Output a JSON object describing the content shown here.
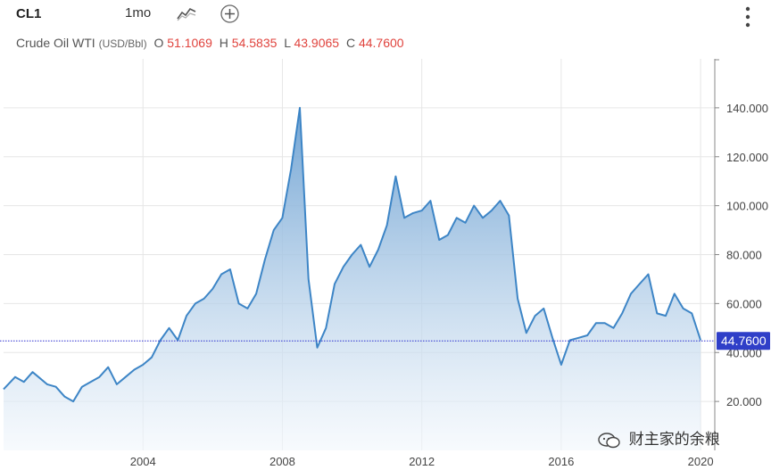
{
  "toolbar": {
    "symbol": "CL1",
    "interval": "1mo",
    "chart_type_icon": "line-chart-icon",
    "add_icon": "plus-circle-icon",
    "menu_icon": "vertical-ellipsis-icon"
  },
  "instrument": {
    "name": "Crude Oil WTI",
    "unit": "(USD/Bbl)",
    "open_label": "O",
    "open": "51.1069",
    "high_label": "H",
    "high": "54.5835",
    "low_label": "L",
    "low": "43.9065",
    "close_label": "C",
    "close": "44.7600"
  },
  "watermark": {
    "text": "财主家的余粮",
    "icon": "wechat-icon"
  },
  "colors": {
    "line": "#3d85c6",
    "fill_top": "#6a9fd1",
    "fill_bottom": "#f2f7fc",
    "last_price_line": "#2b2fd0",
    "last_price_badge": "#2f3fc8",
    "ohlc_value": "#e0433d",
    "grid": "#e6e6e6"
  },
  "chart_data": {
    "type": "area",
    "series": [
      {
        "x": [
          2000.0,
          2000.333,
          2000.583,
          2000.833,
          2001.0,
          2001.25,
          2001.5,
          2001.75,
          2002.0,
          2002.25,
          2002.5,
          2002.75,
          2003.0,
          2003.25,
          2003.5,
          2003.75,
          2004.0,
          2004.25,
          2004.5,
          2004.75,
          2005.0,
          2005.25,
          2005.5,
          2005.75,
          2006.0,
          2006.25,
          2006.5,
          2006.75,
          2007.0,
          2007.25,
          2007.5,
          2007.75,
          2008.0,
          2008.25,
          2008.5,
          2008.75,
          2009.0,
          2009.25,
          2009.5,
          2009.75,
          2010.0,
          2010.25,
          2010.5,
          2010.75,
          2011.0,
          2011.25,
          2011.5,
          2011.75,
          2012.0,
          2012.25,
          2012.5,
          2012.75,
          2013.0,
          2013.25,
          2013.5,
          2013.75,
          2014.0,
          2014.25,
          2014.5,
          2014.75,
          2015.0,
          2015.25,
          2015.5,
          2015.75,
          2016.0,
          2016.25,
          2016.5,
          2016.75,
          2017.0,
          2017.25,
          2017.5,
          2017.75,
          2018.0,
          2018.25,
          2018.5,
          2018.75,
          2019.0,
          2019.25,
          2019.5,
          2019.75,
          2020.0
        ],
        "y": [
          25,
          30,
          28,
          32,
          30,
          27,
          26,
          22,
          20,
          26,
          28,
          30,
          34,
          27,
          30,
          33,
          35,
          38,
          45,
          50,
          45,
          55,
          60,
          62,
          66,
          72,
          74,
          60,
          58,
          64,
          78,
          90,
          95,
          115,
          140,
          70,
          42,
          50,
          68,
          75,
          80,
          84,
          75,
          82,
          92,
          112,
          95,
          97,
          98,
          102,
          86,
          88,
          95,
          93,
          100,
          95,
          98,
          102,
          96,
          62,
          48,
          55,
          58,
          46,
          35,
          45,
          46,
          47,
          52,
          52,
          50,
          56,
          64,
          68,
          72,
          56,
          55,
          64,
          58,
          56,
          45
        ]
      }
    ],
    "x_ticks": [
      "2004",
      "2008",
      "2012",
      "2016",
      "2020"
    ],
    "y_ticks": [
      "20.000",
      "40.000",
      "60.000",
      "80.000",
      "100.000",
      "120.000",
      "140.000"
    ],
    "ylim": [
      0,
      160
    ],
    "xlim": [
      2000.0,
      2020.1
    ],
    "last_value": "44.7600",
    "last_value_num": 44.76,
    "grid": true
  }
}
